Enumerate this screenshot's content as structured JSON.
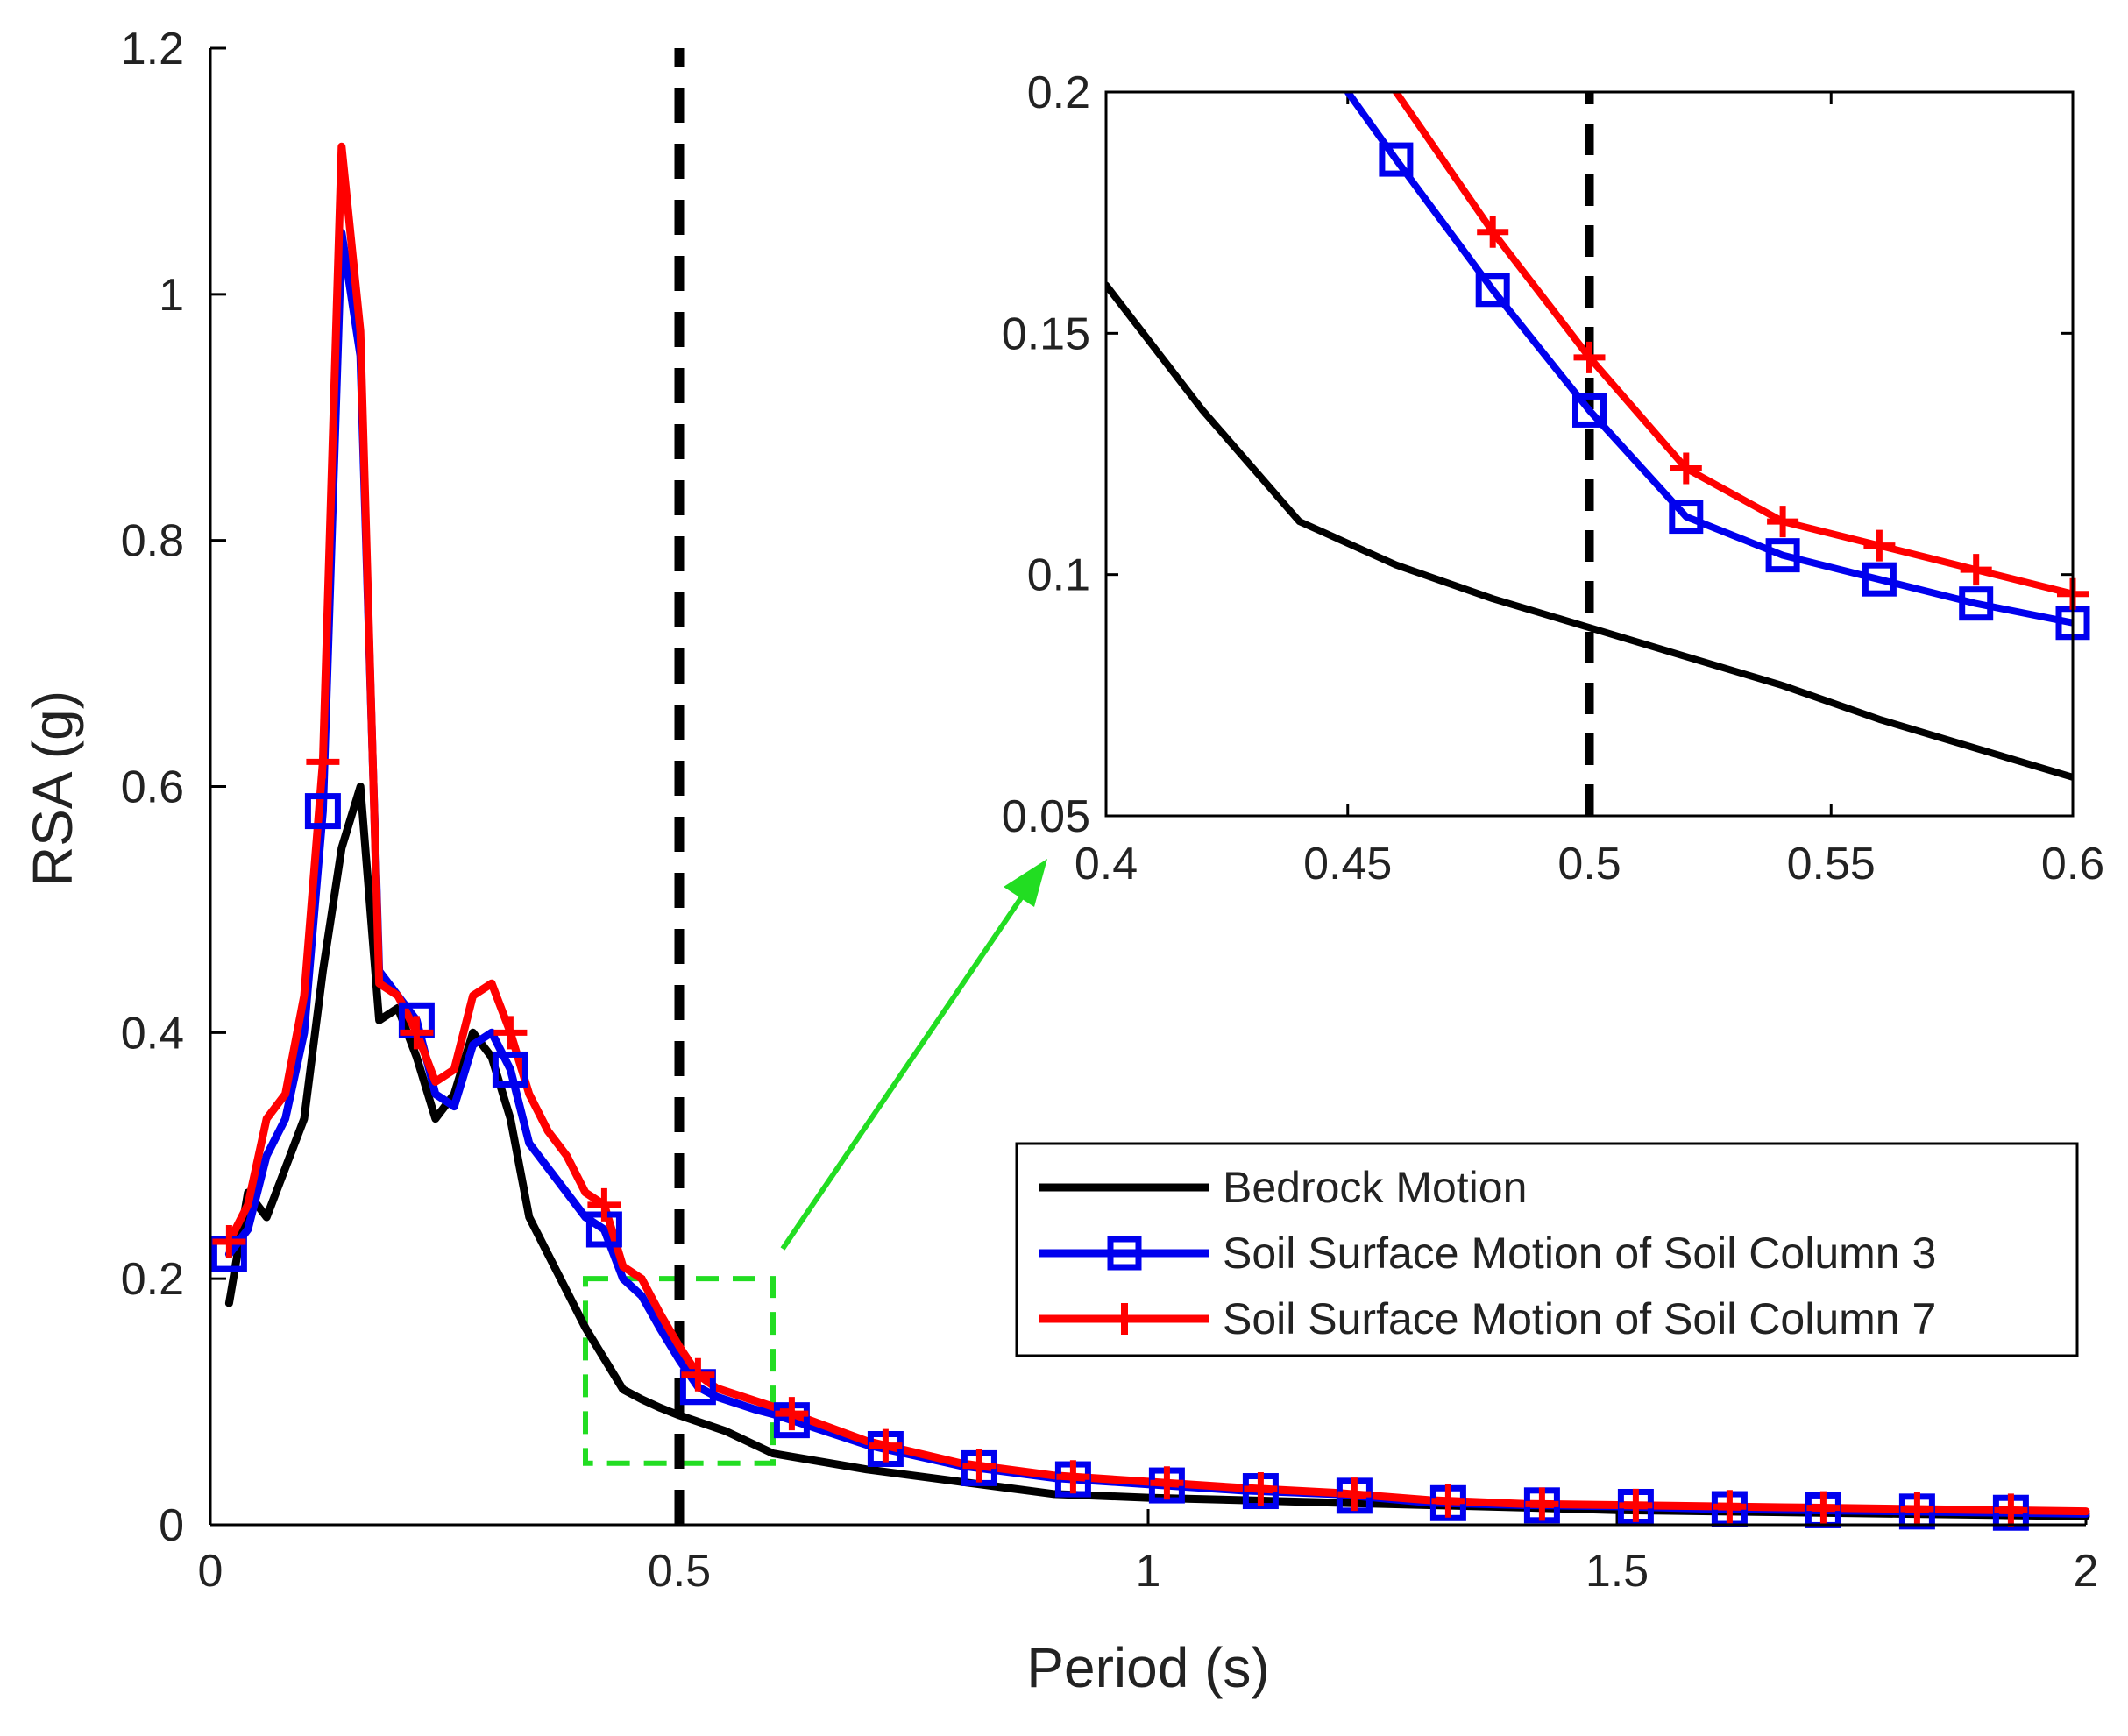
{
  "chart_data": [
    {
      "id": "main",
      "type": "line",
      "title": "",
      "xlabel": "Period (s)",
      "ylabel": "RSA (g)",
      "xlim": [
        0,
        2
      ],
      "ylim": [
        0,
        1.2
      ],
      "xticks": [
        0,
        0.5,
        1,
        1.5,
        2
      ],
      "xtick_labels": [
        "0",
        "0.5",
        "1",
        "1.5",
        "2"
      ],
      "yticks": [
        0,
        0.2,
        0.4,
        0.6,
        0.8,
        1.0,
        1.2
      ],
      "ytick_labels": [
        "0",
        "0.2",
        "0.4",
        "0.6",
        "0.8",
        "1",
        "1.2"
      ],
      "vline": {
        "x": 0.5,
        "style": "dashed",
        "color": "#000000"
      },
      "zoom_box": {
        "x": [
          0.4,
          0.6
        ],
        "y": [
          0.05,
          0.2
        ],
        "color": "#22dd22"
      },
      "legend": {
        "position": "right-middle",
        "entries": [
          {
            "label": "Bedrock Motion",
            "color": "#000000",
            "marker": "none"
          },
          {
            "label": "Soil Surface Motion of Soil Column 3",
            "color": "#0000ee",
            "marker": "square"
          },
          {
            "label": "Soil Surface Motion of Soil Column 7",
            "color": "#ff0000",
            "marker": "plus"
          }
        ]
      },
      "series": [
        {
          "name": "Bedrock Motion",
          "color": "#000000",
          "marker": "none",
          "x": [
            0.02,
            0.04,
            0.06,
            0.08,
            0.1,
            0.12,
            0.14,
            0.16,
            0.18,
            0.2,
            0.22,
            0.24,
            0.26,
            0.28,
            0.3,
            0.32,
            0.34,
            0.36,
            0.38,
            0.4,
            0.42,
            0.44,
            0.46,
            0.48,
            0.5,
            0.55,
            0.6,
            0.7,
            0.8,
            0.9,
            1.0,
            1.1,
            1.2,
            1.3,
            1.4,
            1.5,
            1.6,
            1.7,
            1.8,
            1.9,
            2.0
          ],
          "y": [
            0.18,
            0.27,
            0.25,
            0.29,
            0.33,
            0.45,
            0.55,
            0.6,
            0.41,
            0.42,
            0.38,
            0.33,
            0.35,
            0.4,
            0.38,
            0.33,
            0.25,
            0.22,
            0.19,
            0.16,
            0.135,
            0.11,
            0.102,
            0.095,
            0.089,
            0.076,
            0.058,
            0.045,
            0.035,
            0.025,
            0.022,
            0.02,
            0.018,
            0.016,
            0.014,
            0.012,
            0.011,
            0.01,
            0.009,
            0.008,
            0.007
          ]
        },
        {
          "name": "Soil Surface Motion of Soil Column 3",
          "color": "#0000ee",
          "marker": "square",
          "x": [
            0.02,
            0.04,
            0.06,
            0.08,
            0.1,
            0.12,
            0.14,
            0.16,
            0.18,
            0.2,
            0.22,
            0.24,
            0.26,
            0.28,
            0.3,
            0.32,
            0.34,
            0.36,
            0.38,
            0.4,
            0.42,
            0.44,
            0.46,
            0.48,
            0.5,
            0.52,
            0.54,
            0.56,
            0.58,
            0.6,
            0.7,
            0.8,
            0.9,
            1.0,
            1.1,
            1.2,
            1.3,
            1.4,
            1.5,
            1.6,
            1.7,
            1.8,
            1.9,
            2.0
          ],
          "y": [
            0.22,
            0.24,
            0.3,
            0.33,
            0.4,
            0.58,
            1.05,
            0.95,
            0.45,
            0.43,
            0.41,
            0.35,
            0.34,
            0.39,
            0.4,
            0.37,
            0.31,
            0.29,
            0.27,
            0.25,
            0.24,
            0.2,
            0.186,
            0.159,
            0.134,
            0.112,
            0.104,
            0.099,
            0.094,
            0.09,
            0.065,
            0.048,
            0.038,
            0.033,
            0.028,
            0.025,
            0.018,
            0.016,
            0.015,
            0.013,
            0.012,
            0.011,
            0.01,
            0.009
          ]
        },
        {
          "name": "Soil Surface Motion of Soil Column 7",
          "color": "#ff0000",
          "marker": "plus",
          "x": [
            0.02,
            0.04,
            0.06,
            0.08,
            0.1,
            0.12,
            0.14,
            0.16,
            0.18,
            0.2,
            0.22,
            0.24,
            0.26,
            0.28,
            0.3,
            0.32,
            0.34,
            0.36,
            0.38,
            0.4,
            0.42,
            0.44,
            0.46,
            0.48,
            0.5,
            0.52,
            0.54,
            0.56,
            0.58,
            0.6,
            0.7,
            0.8,
            0.9,
            1.0,
            1.1,
            1.2,
            1.3,
            1.4,
            1.5,
            1.6,
            1.7,
            1.8,
            1.9,
            2.0
          ],
          "y": [
            0.23,
            0.26,
            0.33,
            0.35,
            0.43,
            0.62,
            1.12,
            0.97,
            0.44,
            0.43,
            0.4,
            0.36,
            0.37,
            0.43,
            0.44,
            0.4,
            0.35,
            0.32,
            0.3,
            0.27,
            0.26,
            0.21,
            0.2,
            0.171,
            0.145,
            0.122,
            0.111,
            0.106,
            0.101,
            0.096,
            0.068,
            0.05,
            0.04,
            0.035,
            0.03,
            0.026,
            0.02,
            0.017,
            0.016,
            0.015,
            0.014,
            0.013,
            0.012,
            0.011
          ]
        }
      ]
    },
    {
      "id": "inset",
      "type": "line",
      "title": "",
      "xlabel": "",
      "ylabel": "",
      "xlim": [
        0.4,
        0.6
      ],
      "ylim": [
        0.05,
        0.2
      ],
      "xticks": [
        0.4,
        0.45,
        0.5,
        0.55,
        0.6
      ],
      "xtick_labels": [
        "0.4",
        "0.45",
        "0.5",
        "0.55",
        "0.6"
      ],
      "yticks": [
        0.05,
        0.1,
        0.15,
        0.2
      ],
      "ytick_labels": [
        "0.05",
        "0.1",
        "0.15",
        "0.2"
      ],
      "vline": {
        "x": 0.5,
        "style": "dashed",
        "color": "#000000"
      },
      "series": [
        {
          "name": "Bedrock Motion",
          "color": "#000000",
          "marker": "none",
          "x": [
            0.4,
            0.42,
            0.44,
            0.46,
            0.48,
            0.5,
            0.52,
            0.54,
            0.56,
            0.58,
            0.6
          ],
          "y": [
            0.16,
            0.134,
            0.111,
            0.102,
            0.095,
            0.089,
            0.083,
            0.077,
            0.07,
            0.064,
            0.058
          ]
        },
        {
          "name": "Soil Surface Motion of Soil Column 3",
          "color": "#0000ee",
          "marker": "square",
          "x": [
            0.45,
            0.46,
            0.48,
            0.5,
            0.52,
            0.54,
            0.56,
            0.58,
            0.6
          ],
          "y": [
            0.2,
            0.186,
            0.159,
            0.134,
            0.112,
            0.104,
            0.099,
            0.094,
            0.09
          ],
          "marker_x": [
            0.46,
            0.48,
            0.5,
            0.52,
            0.54,
            0.56,
            0.58,
            0.6
          ]
        },
        {
          "name": "Soil Surface Motion of Soil Column 7",
          "color": "#ff0000",
          "marker": "plus",
          "x": [
            0.46,
            0.48,
            0.5,
            0.52,
            0.54,
            0.56,
            0.58,
            0.6
          ],
          "y": [
            0.2,
            0.171,
            0.145,
            0.122,
            0.111,
            0.106,
            0.101,
            0.096
          ],
          "marker_x": [
            0.48,
            0.5,
            0.52,
            0.54,
            0.56,
            0.58,
            0.6
          ]
        }
      ]
    }
  ]
}
